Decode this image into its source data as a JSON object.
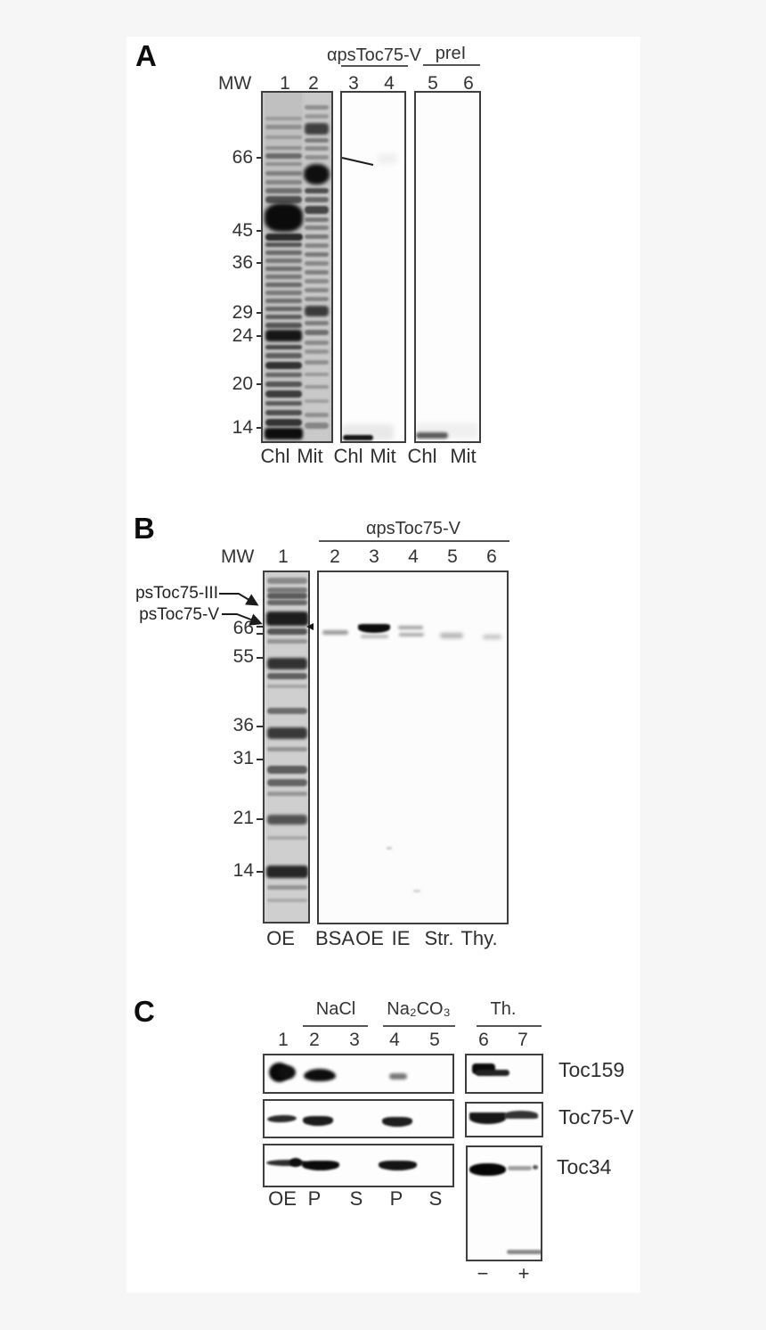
{
  "panels": {
    "a": {
      "label": "A",
      "header_antibody": "αpsToc75-V",
      "header_preimmune": "preI",
      "mw_label": "MW",
      "lanes": [
        "1",
        "2",
        "3",
        "4",
        "5",
        "6"
      ],
      "markers": [
        "66",
        "45",
        "36",
        "29",
        "24",
        "20",
        "14"
      ],
      "bottom": [
        "Chl",
        "Mit",
        "Chl",
        "Mit",
        "Chl",
        "Mit"
      ],
      "gel1": {
        "bands": [
          [
            3,
            0,
            41,
            391,
            "#c0c0c0",
            0,
            "0"
          ],
          [
            47,
            0,
            27,
            391,
            "#c9c9c9",
            0,
            "0"
          ],
          [
            3,
            27,
            41,
            4,
            "#9a9a9a"
          ],
          [
            3,
            36,
            41,
            5,
            "#8e8e8e"
          ],
          [
            3,
            48,
            41,
            4,
            "#999999"
          ],
          [
            3,
            60,
            41,
            4,
            "#8f8f8f"
          ],
          [
            3,
            68,
            41,
            6,
            "#6a6a6a"
          ],
          [
            3,
            78,
            41,
            4,
            "#909090"
          ],
          [
            3,
            88,
            41,
            5,
            "#7e7e7e"
          ],
          [
            3,
            98,
            41,
            5,
            "#858585"
          ],
          [
            3,
            107,
            41,
            6,
            "#707070"
          ],
          [
            3,
            116,
            41,
            8,
            "#4f4f4f"
          ],
          [
            2,
            124,
            43,
            32,
            "#0b0b0b",
            2,
            "40%"
          ],
          [
            3,
            158,
            42,
            8,
            "#2a2a2a"
          ],
          [
            3,
            168,
            41,
            5,
            "#555555"
          ],
          [
            3,
            177,
            41,
            5,
            "#6a6a6a"
          ],
          [
            3,
            186,
            41,
            5,
            "#777777"
          ],
          [
            3,
            195,
            41,
            5,
            "#6f6f6f"
          ],
          [
            3,
            204,
            41,
            5,
            "#787878"
          ],
          [
            3,
            213,
            41,
            5,
            "#6a6a6a"
          ],
          [
            3,
            222,
            41,
            5,
            "#7a7a7a"
          ],
          [
            3,
            231,
            41,
            5,
            "#707070"
          ],
          [
            3,
            240,
            41,
            5,
            "#656565"
          ],
          [
            3,
            249,
            41,
            5,
            "#5e5e5e"
          ],
          [
            3,
            258,
            41,
            6,
            "#565656"
          ],
          [
            3,
            266,
            41,
            13,
            "#161616",
            1.5
          ],
          [
            3,
            283,
            41,
            5,
            "#4a4a4a"
          ],
          [
            3,
            292,
            41,
            6,
            "#5f5f5f"
          ],
          [
            3,
            302,
            41,
            8,
            "#323232"
          ],
          [
            3,
            314,
            41,
            5,
            "#666666"
          ],
          [
            3,
            324,
            41,
            6,
            "#555555"
          ],
          [
            3,
            334,
            41,
            8,
            "#3c3c3c"
          ],
          [
            3,
            346,
            41,
            5,
            "#5a5a5a"
          ],
          [
            3,
            356,
            41,
            6,
            "#4f4f4f"
          ],
          [
            3,
            366,
            41,
            8,
            "#343434"
          ],
          [
            2,
            376,
            43,
            13,
            "#0d0d0d",
            1.5
          ],
          [
            47,
            14,
            27,
            5,
            "#8f8f8f"
          ],
          [
            47,
            24,
            27,
            5,
            "#999999"
          ],
          [
            47,
            34,
            27,
            13,
            "#3f3f3f",
            1.5
          ],
          [
            47,
            51,
            27,
            5,
            "#7d7d7d"
          ],
          [
            47,
            60,
            27,
            5,
            "#8a8a8a"
          ],
          [
            47,
            70,
            27,
            5,
            "#8f8f8f"
          ],
          [
            46,
            80,
            29,
            23,
            "#0f0f0f",
            2,
            "45%"
          ],
          [
            47,
            107,
            27,
            6,
            "#4f4f4f"
          ],
          [
            47,
            117,
            27,
            6,
            "#6a6a6a"
          ],
          [
            47,
            127,
            27,
            9,
            "#464646"
          ],
          [
            47,
            140,
            27,
            5,
            "#777777"
          ],
          [
            47,
            149,
            27,
            5,
            "#808080"
          ],
          [
            47,
            159,
            27,
            5,
            "#777777"
          ],
          [
            47,
            169,
            27,
            5,
            "#858585"
          ],
          [
            47,
            179,
            27,
            5,
            "#7a7a7a"
          ],
          [
            47,
            189,
            27,
            5,
            "#888888"
          ],
          [
            47,
            199,
            27,
            5,
            "#808080"
          ],
          [
            47,
            209,
            27,
            5,
            "#8a8a8a"
          ],
          [
            47,
            219,
            27,
            5,
            "#878787"
          ],
          [
            47,
            229,
            27,
            5,
            "#848484"
          ],
          [
            47,
            239,
            27,
            12,
            "#3a3a3a",
            1.5
          ],
          [
            47,
            256,
            27,
            5,
            "#7d7d7d"
          ],
          [
            47,
            266,
            27,
            6,
            "#6f6f6f"
          ],
          [
            47,
            278,
            27,
            5,
            "#8a8a8a"
          ],
          [
            47,
            288,
            27,
            5,
            "#949494"
          ],
          [
            47,
            300,
            27,
            5,
            "#8f8f8f"
          ],
          [
            47,
            314,
            27,
            4,
            "#9a9a9a"
          ],
          [
            47,
            328,
            27,
            4,
            "#979797"
          ],
          [
            47,
            344,
            27,
            4,
            "#9f9f9f"
          ],
          [
            47,
            359,
            27,
            5,
            "#8f8f8f"
          ],
          [
            47,
            370,
            27,
            7,
            "#858585"
          ]
        ]
      },
      "gel2": {
        "bands": [
          [
            40,
            68,
            22,
            12,
            "rgba(0,0,0,0.05)",
            3
          ],
          [
            0,
            372,
            58,
            18,
            "rgba(0,0,0,0.08)",
            3
          ],
          [
            1,
            384,
            34,
            6,
            "#141414",
            1
          ]
        ]
      },
      "gel3": {
        "bands": [
          [
            0,
            370,
            70,
            18,
            "rgba(0,0,0,0.05)",
            3
          ],
          [
            0,
            381,
            36,
            7,
            "#5a5a5a",
            1.5
          ]
        ]
      }
    },
    "b": {
      "label": "B",
      "header": "αpsToc75-V",
      "mw_label": "MW",
      "lanes": [
        "1",
        "2",
        "3",
        "4",
        "5",
        "6"
      ],
      "band_labels": [
        "psToc75-III",
        "psToc75-V"
      ],
      "markers": [
        "66",
        "55",
        "36",
        "31",
        "21",
        "14"
      ],
      "bottom": [
        "OE",
        "BSA",
        "OE",
        "IE",
        "Str.",
        "Thy."
      ],
      "gel1": {
        "bands": [
          [
            2,
            0,
            47,
            392,
            "#cfcfcf",
            0,
            "0"
          ],
          [
            3,
            6,
            45,
            7,
            "#8a8a8a"
          ],
          [
            3,
            17,
            45,
            6,
            "#7a7a7a"
          ],
          [
            3,
            23,
            45,
            7,
            "#5c5c5c"
          ],
          [
            3,
            31,
            45,
            6,
            "#686868"
          ],
          [
            2,
            44,
            47,
            16,
            "#1d1d1d",
            1.5
          ],
          [
            3,
            63,
            45,
            7,
            "#565656"
          ],
          [
            3,
            75,
            45,
            5,
            "#949494"
          ],
          [
            3,
            96,
            45,
            13,
            "#323232",
            1.5
          ],
          [
            3,
            113,
            45,
            7,
            "#616161"
          ],
          [
            3,
            126,
            45,
            4,
            "#a5a5a5"
          ],
          [
            3,
            152,
            45,
            7,
            "#6d6d6d"
          ],
          [
            3,
            174,
            45,
            13,
            "#393939",
            1.5
          ],
          [
            3,
            196,
            45,
            5,
            "#959595"
          ],
          [
            3,
            217,
            45,
            9,
            "#5d5d5d"
          ],
          [
            3,
            232,
            45,
            8,
            "#646464"
          ],
          [
            3,
            246,
            45,
            5,
            "#979797"
          ],
          [
            3,
            272,
            45,
            11,
            "#525252",
            1.5
          ],
          [
            3,
            296,
            45,
            4,
            "#a8a8a8"
          ],
          [
            2,
            329,
            47,
            14,
            "#262626",
            1.5
          ],
          [
            3,
            351,
            45,
            5,
            "#949494"
          ],
          [
            3,
            366,
            45,
            4,
            "#ababab"
          ]
        ]
      },
      "gel2": {
        "bands": [
          [
            4,
            65,
            29,
            5,
            "#9a9a9a",
            1.5
          ],
          [
            44,
            58,
            36,
            10,
            "#0c0c0c",
            1,
            "20% 20% 60% 60%"
          ],
          [
            47,
            70,
            31,
            4,
            "#b8b8b8",
            1.5
          ],
          [
            89,
            60,
            28,
            4,
            "#a2a2a2",
            1.5
          ],
          [
            90,
            68,
            28,
            4,
            "#aaaaaa",
            1.5
          ],
          [
            136,
            68,
            26,
            6,
            "#b2b2b2",
            2
          ],
          [
            184,
            70,
            21,
            5,
            "#c2c2c2",
            2
          ],
          [
            76,
            308,
            6,
            3,
            "#cccccc",
            1
          ],
          [
            106,
            356,
            8,
            3,
            "#d0d0d0",
            1
          ]
        ]
      }
    },
    "c": {
      "label": "C",
      "headers": [
        "NaCl",
        "Na₂CO₃",
        "Th."
      ],
      "lanes": [
        "1",
        "2",
        "3",
        "4",
        "5",
        "6",
        "7"
      ],
      "rows": [
        "Toc159",
        "Toc75-V",
        "Toc34"
      ],
      "bottom": [
        "OE",
        "P",
        "S",
        "P",
        "S"
      ],
      "signs": [
        "−",
        "+"
      ],
      "r1l": {
        "bands": [
          [
            5,
            8,
            23,
            22,
            "#080808",
            1.5,
            "50%"
          ],
          [
            15,
            11,
            20,
            16,
            "#101010",
            1.5,
            "50%"
          ],
          [
            44,
            15,
            36,
            14,
            "#0d0d0d",
            1.5,
            "50% 50% 50% 50%/60% 60% 40% 40%"
          ],
          [
            140,
            20,
            20,
            7,
            "#777777",
            1.5
          ]
        ]
      },
      "r1r": {
        "bands": [
          [
            6,
            9,
            26,
            12,
            "#0a0a0a",
            1
          ],
          [
            10,
            16,
            38,
            7,
            "#222222",
            1
          ]
        ]
      },
      "r2l": {
        "bands": [
          [
            3,
            16,
            33,
            8,
            "#2a2a2a",
            1,
            "50%",
            -2
          ],
          [
            43,
            17,
            34,
            11,
            "#1c1c1c",
            1,
            "40% 40% 60% 60%"
          ],
          [
            132,
            18,
            34,
            11,
            "#1e1e1e",
            1,
            "40% 40% 60% 60%"
          ]
        ]
      },
      "r2r": {
        "bands": [
          [
            3,
            10,
            41,
            13,
            "#161616",
            1,
            "10% 10% 70% 70%"
          ],
          [
            42,
            8,
            38,
            9,
            "#333333",
            1,
            "70% 70% 20% 20%"
          ]
        ]
      },
      "r3l": {
        "bands": [
          [
            2,
            16,
            46,
            7,
            "#2e2e2e",
            1,
            "50%"
          ],
          [
            28,
            14,
            14,
            10,
            "#101010",
            1,
            "50%"
          ],
          [
            42,
            17,
            42,
            11,
            "#0b0b0b",
            1,
            "40% 40% 60% 60%"
          ],
          [
            128,
            17,
            43,
            11,
            "#141414",
            1,
            "40% 40% 60% 60%"
          ]
        ]
      },
      "r3r": {
        "bands": [
          [
            2,
            18,
            41,
            14,
            "#050505",
            1,
            "45%"
          ],
          [
            45,
            21,
            27,
            5,
            "#a0a0a0",
            1
          ],
          [
            73,
            20,
            6,
            5,
            "#555555",
            1,
            "50%"
          ],
          [
            44,
            115,
            40,
            5,
            "#8a8a8a",
            1
          ]
        ]
      }
    }
  }
}
